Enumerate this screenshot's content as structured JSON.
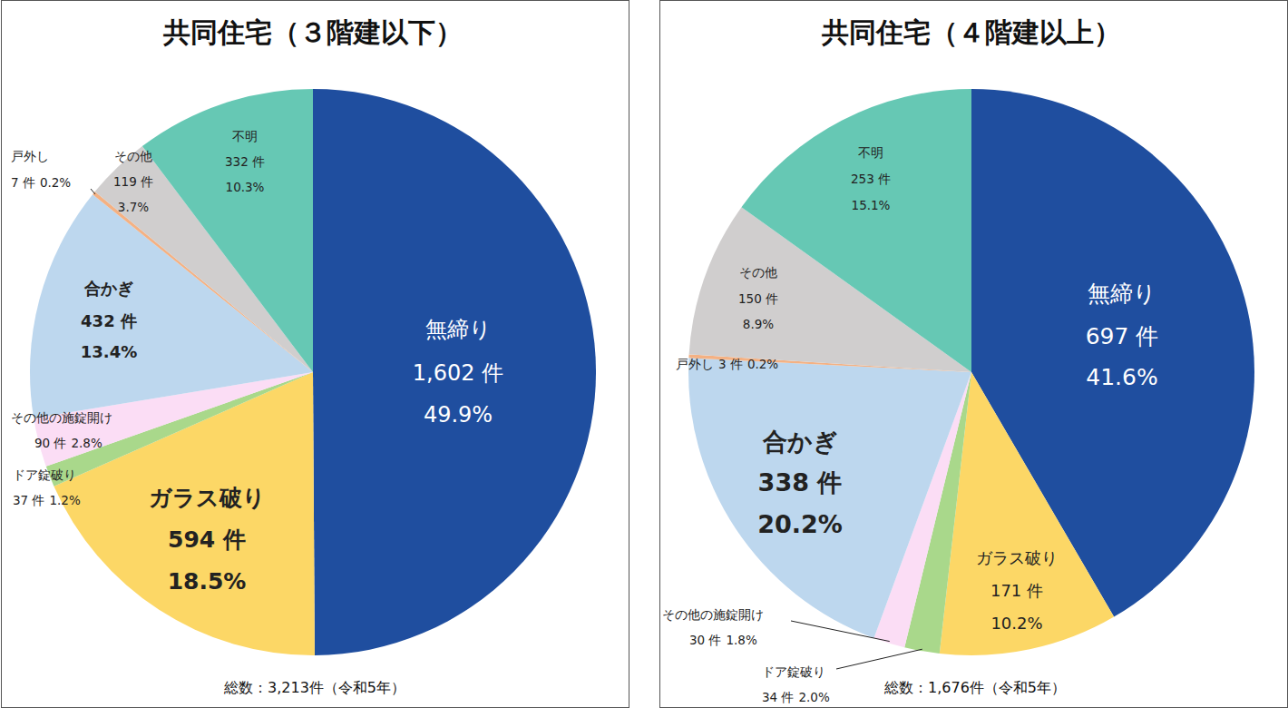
{
  "chart_data": [
    {
      "type": "pie",
      "title": "共同住宅（３階建以下）",
      "categories": [
        "無締り",
        "ガラス破り",
        "ドア錠破り",
        "その他の施錠開け",
        "合かぎ",
        "戸外し",
        "その他",
        "不明"
      ],
      "values": [
        49.9,
        18.5,
        1.2,
        2.8,
        13.4,
        0.2,
        3.7,
        10.3
      ],
      "value_labels": [
        "49.9%",
        "18.5%",
        "1.2%",
        "2.8%",
        "13.4%",
        "0.2%",
        "3.7%",
        "10.3%"
      ],
      "count_labels": [
        "1,602 件",
        "594 件",
        "37 件",
        "90 件",
        "432 件",
        "7 件",
        "119 件",
        "332 件"
      ],
      "colors": [
        "#1f4e9f",
        "#fcd766",
        "#a9d88b",
        "#fbddf5",
        "#bdd7ee",
        "#f4b183",
        "#d0cece",
        "#66c8b4"
      ],
      "data_labels": true,
      "note": "総数：3,213件（令和5年）"
    },
    {
      "type": "pie",
      "title": "共同住宅（４階建以上）",
      "categories": [
        "無締り",
        "ガラス破り",
        "ドア錠破り",
        "その他の施錠開け",
        "合かぎ",
        "戸外し",
        "その他",
        "不明"
      ],
      "values": [
        41.6,
        10.2,
        2.0,
        1.8,
        20.2,
        0.2,
        8.9,
        15.1
      ],
      "value_labels": [
        "41.6%",
        "10.2%",
        "2.0%",
        "1.8%",
        "20.2%",
        "0.2%",
        "8.9%",
        "15.1%"
      ],
      "count_labels": [
        "697 件",
        "171 件",
        "34 件",
        "30 件",
        "338 件",
        "3 件",
        "150 件",
        "253 件"
      ],
      "colors": [
        "#1f4e9f",
        "#fcd766",
        "#a9d88b",
        "#fbddf5",
        "#bdd7ee",
        "#f4b183",
        "#d0cece",
        "#66c8b4"
      ],
      "data_labels": true,
      "note": "総数：1,676件（令和5年）"
    }
  ]
}
